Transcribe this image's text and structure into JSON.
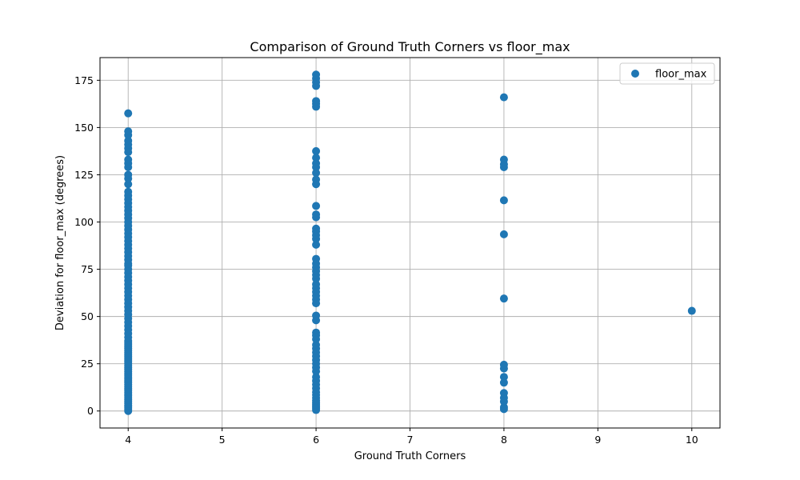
{
  "chart_data": {
    "type": "scatter",
    "title": "Comparison of Ground Truth Corners vs floor_max",
    "xlabel": "Ground Truth Corners",
    "ylabel": "Deviation for floor_max (degrees)",
    "xlim": [
      3.7,
      10.3
    ],
    "ylim": [
      -9,
      187
    ],
    "xticks": [
      4,
      5,
      6,
      7,
      8,
      9,
      10
    ],
    "yticks": [
      0,
      25,
      50,
      75,
      100,
      125,
      150,
      175
    ],
    "grid": true,
    "legend": {
      "position": "top-right",
      "entries": [
        "floor_max"
      ]
    },
    "series": [
      {
        "name": "floor_max",
        "color": "#1f77b4",
        "points": [
          [
            4,
            0
          ],
          [
            4,
            1
          ],
          [
            4,
            2
          ],
          [
            4,
            3
          ],
          [
            4,
            4
          ],
          [
            4,
            5
          ],
          [
            4,
            6
          ],
          [
            4,
            7
          ],
          [
            4,
            8
          ],
          [
            4,
            9
          ],
          [
            4,
            10
          ],
          [
            4,
            11
          ],
          [
            4,
            12
          ],
          [
            4,
            13
          ],
          [
            4,
            14
          ],
          [
            4,
            15
          ],
          [
            4,
            16
          ],
          [
            4,
            17
          ],
          [
            4,
            18
          ],
          [
            4,
            19
          ],
          [
            4,
            20
          ],
          [
            4,
            21
          ],
          [
            4,
            22
          ],
          [
            4,
            23
          ],
          [
            4,
            24
          ],
          [
            4,
            25
          ],
          [
            4,
            26
          ],
          [
            4,
            27
          ],
          [
            4,
            28
          ],
          [
            4,
            29
          ],
          [
            4,
            30
          ],
          [
            4,
            31
          ],
          [
            4,
            32
          ],
          [
            4,
            33
          ],
          [
            4,
            34
          ],
          [
            4,
            35
          ],
          [
            4,
            36
          ],
          [
            4,
            37
          ],
          [
            4,
            39
          ],
          [
            4,
            41
          ],
          [
            4,
            43
          ],
          [
            4,
            45
          ],
          [
            4,
            47
          ],
          [
            4,
            49
          ],
          [
            4,
            51
          ],
          [
            4,
            53
          ],
          [
            4,
            55
          ],
          [
            4,
            57
          ],
          [
            4,
            59
          ],
          [
            4,
            61
          ],
          [
            4,
            63
          ],
          [
            4,
            65
          ],
          [
            4,
            67
          ],
          [
            4,
            69
          ],
          [
            4,
            71
          ],
          [
            4,
            73
          ],
          [
            4,
            75
          ],
          [
            4,
            77
          ],
          [
            4,
            78
          ],
          [
            4,
            80
          ],
          [
            4,
            82
          ],
          [
            4,
            84
          ],
          [
            4,
            86
          ],
          [
            4,
            88
          ],
          [
            4,
            90
          ],
          [
            4,
            92
          ],
          [
            4,
            94
          ],
          [
            4,
            96
          ],
          [
            4,
            98
          ],
          [
            4,
            100
          ],
          [
            4,
            102
          ],
          [
            4,
            104
          ],
          [
            4,
            106
          ],
          [
            4,
            108
          ],
          [
            4,
            110
          ],
          [
            4,
            112
          ],
          [
            4,
            114
          ],
          [
            4,
            116
          ],
          [
            4,
            120
          ],
          [
            4,
            123
          ],
          [
            4,
            125
          ],
          [
            4,
            129
          ],
          [
            4,
            131
          ],
          [
            4,
            133
          ],
          [
            4,
            137
          ],
          [
            4,
            139
          ],
          [
            4,
            141
          ],
          [
            4,
            143
          ],
          [
            4,
            146
          ],
          [
            4,
            148
          ],
          [
            4,
            157.5
          ],
          [
            6,
            0.5
          ],
          [
            6,
            1.5
          ],
          [
            6,
            2.5
          ],
          [
            6,
            3.5
          ],
          [
            6,
            4.5
          ],
          [
            6,
            5.5
          ],
          [
            6,
            7
          ],
          [
            6,
            8.5
          ],
          [
            6,
            10
          ],
          [
            6,
            12
          ],
          [
            6,
            14
          ],
          [
            6,
            16
          ],
          [
            6,
            18
          ],
          [
            6,
            21
          ],
          [
            6,
            23
          ],
          [
            6,
            25
          ],
          [
            6,
            27
          ],
          [
            6,
            29
          ],
          [
            6,
            31
          ],
          [
            6,
            33
          ],
          [
            6,
            35
          ],
          [
            6,
            38
          ],
          [
            6,
            40
          ],
          [
            6,
            41.5
          ],
          [
            6,
            48
          ],
          [
            6,
            50.5
          ],
          [
            6,
            57
          ],
          [
            6,
            59
          ],
          [
            6,
            61
          ],
          [
            6,
            63
          ],
          [
            6,
            65
          ],
          [
            6,
            67
          ],
          [
            6,
            70
          ],
          [
            6,
            72
          ],
          [
            6,
            74
          ],
          [
            6,
            76
          ],
          [
            6,
            78
          ],
          [
            6,
            80.5
          ],
          [
            6,
            88
          ],
          [
            6,
            91
          ],
          [
            6,
            93
          ],
          [
            6,
            95
          ],
          [
            6,
            96.5
          ],
          [
            6,
            102.5
          ],
          [
            6,
            104
          ],
          [
            6,
            108.5
          ],
          [
            6,
            120
          ],
          [
            6,
            122.5
          ],
          [
            6,
            126
          ],
          [
            6,
            129
          ],
          [
            6,
            131
          ],
          [
            6,
            134
          ],
          [
            6,
            137.5
          ],
          [
            6,
            161
          ],
          [
            6,
            162.5
          ],
          [
            6,
            164
          ],
          [
            6,
            172
          ],
          [
            6,
            174
          ],
          [
            6,
            176
          ],
          [
            6,
            178
          ],
          [
            8,
            1
          ],
          [
            8,
            2
          ],
          [
            8,
            5
          ],
          [
            8,
            7
          ],
          [
            8,
            9.5
          ],
          [
            8,
            15
          ],
          [
            8,
            18
          ],
          [
            8,
            22.5
          ],
          [
            8,
            24.5
          ],
          [
            8,
            59.5
          ],
          [
            8,
            93.5
          ],
          [
            8,
            111.5
          ],
          [
            8,
            129
          ],
          [
            8,
            130.5
          ],
          [
            8,
            133
          ],
          [
            8,
            166
          ],
          [
            10,
            53
          ]
        ]
      }
    ]
  }
}
